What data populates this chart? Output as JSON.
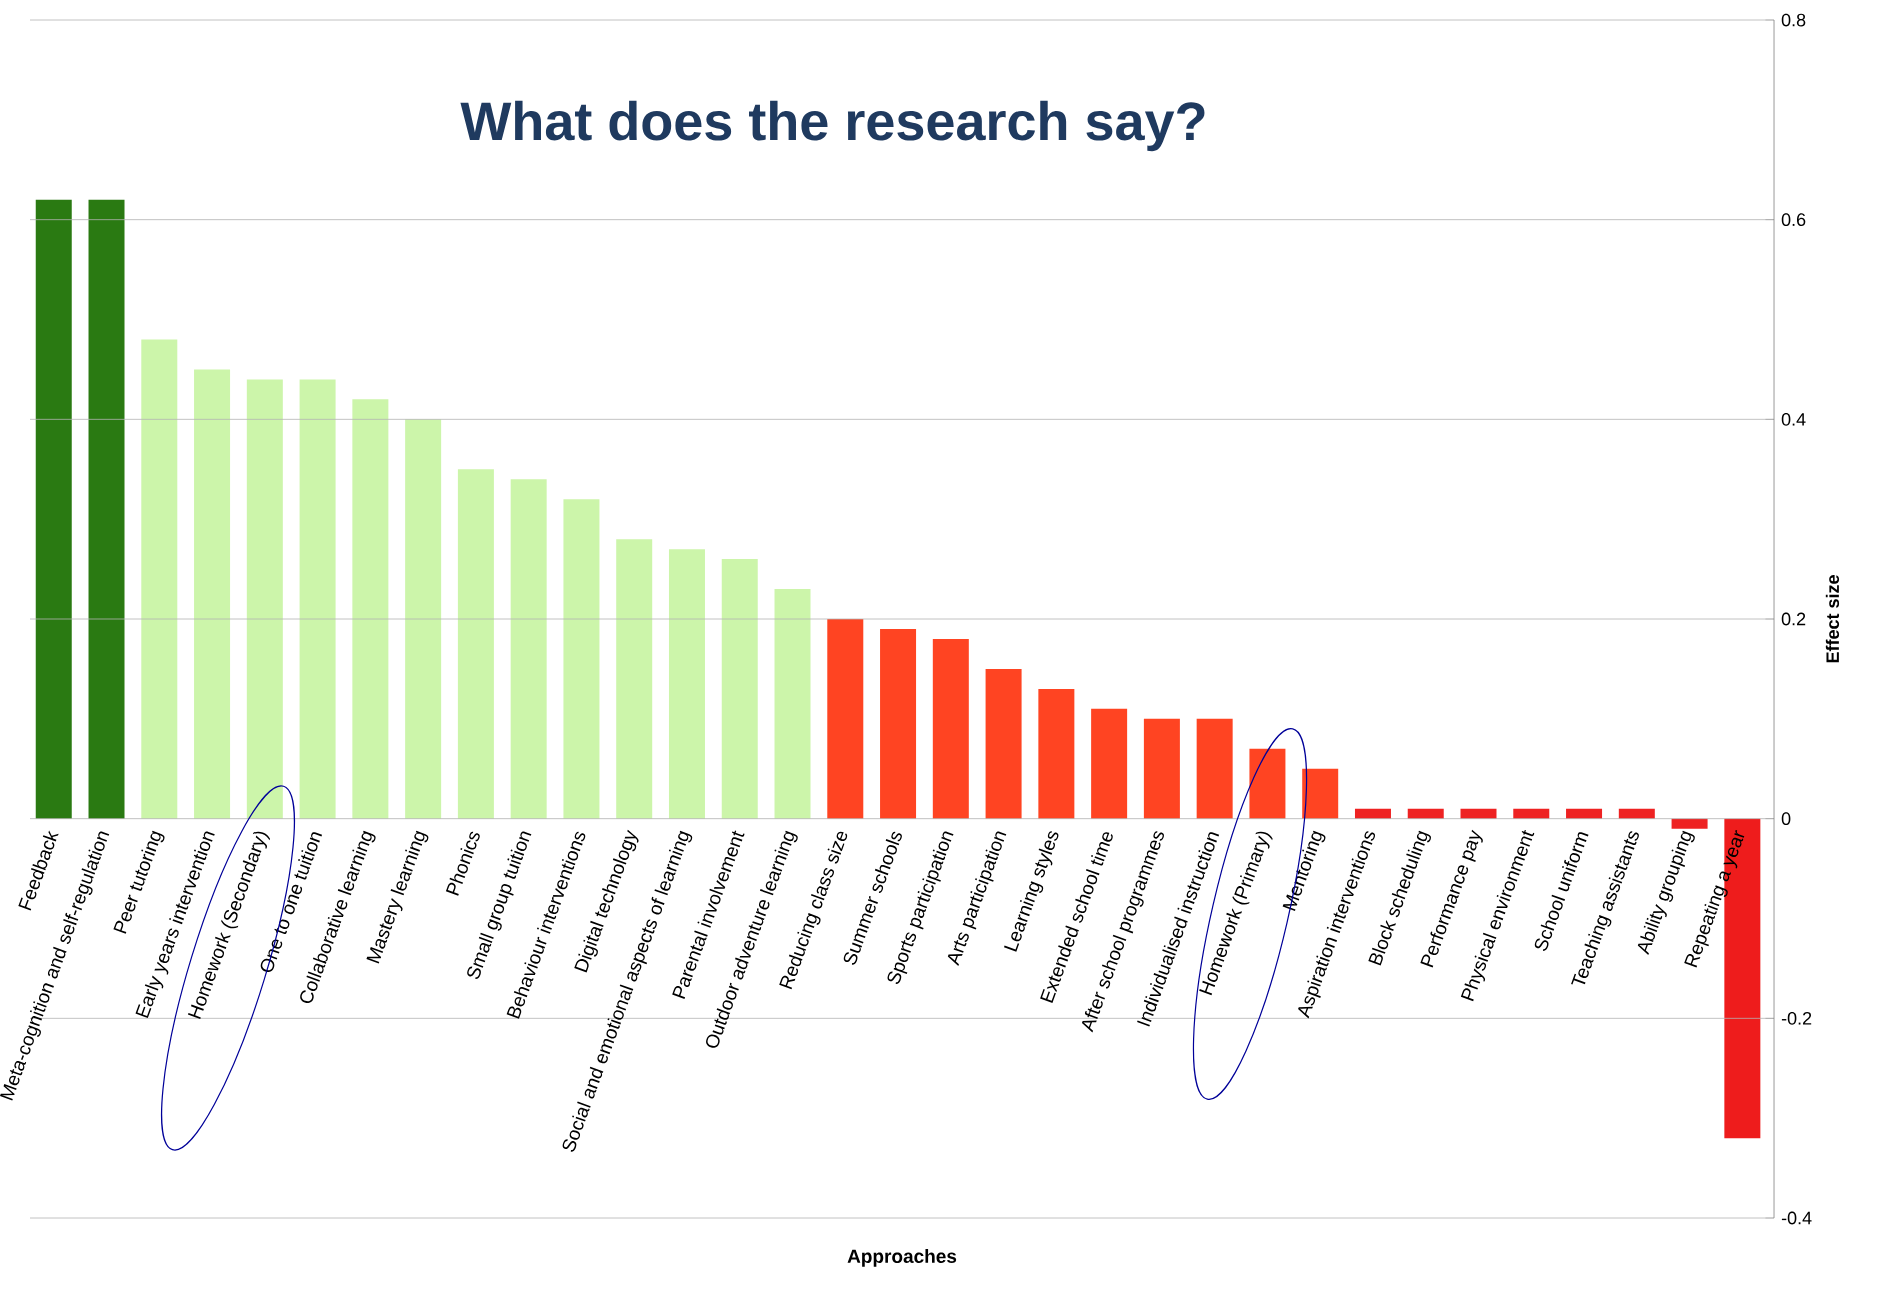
{
  "chart_data": {
    "type": "bar",
    "title": "What does the research say?",
    "xlabel": "Approaches",
    "ylabel": "Effect size",
    "categories": [
      "Feedback",
      "Meta-cognition and self-regulation",
      "Peer tutoring",
      "Early years intervention",
      "Homework (Secondary)",
      "One to one tuition",
      "Collaborative learning",
      "Mastery learning",
      "Phonics",
      "Small group tuition",
      "Behaviour interventions",
      "Digital technology",
      "Social and emotional aspects of learning",
      "Parental involvement",
      "Outdoor adventure learning",
      "Reducing class size",
      "Summer schools",
      "Sports participation",
      "Arts participation",
      "Learning styles",
      "Extended school time",
      "After school programmes",
      "Individualised instruction",
      "Homework (Primary)",
      "Mentoring",
      "Aspiration interventions",
      "Block scheduling",
      "Performance pay",
      "Physical environment",
      "School uniform",
      "Teaching assistants",
      "Ability grouping",
      "Repeating a year"
    ],
    "values": [
      0.62,
      0.62,
      0.48,
      0.45,
      0.44,
      0.44,
      0.42,
      0.4,
      0.35,
      0.34,
      0.32,
      0.28,
      0.27,
      0.26,
      0.23,
      0.2,
      0.19,
      0.18,
      0.15,
      0.13,
      0.11,
      0.1,
      0.1,
      0.07,
      0.05,
      0.01,
      0.01,
      0.01,
      0.01,
      0.01,
      0.01,
      -0.01,
      -0.32
    ],
    "colors": [
      "#2a7a12",
      "#2a7a12",
      "#ccf5aa",
      "#ccf5aa",
      "#ccf5aa",
      "#ccf5aa",
      "#ccf5aa",
      "#ccf5aa",
      "#ccf5aa",
      "#ccf5aa",
      "#ccf5aa",
      "#ccf5aa",
      "#ccf5aa",
      "#ccf5aa",
      "#ccf5aa",
      "#ff4422",
      "#ff4422",
      "#ff4422",
      "#ff4422",
      "#ff4422",
      "#ff4422",
      "#ff4422",
      "#ff4422",
      "#ff4422",
      "#ff4422",
      "#ee2222",
      "#ee2222",
      "#ee2222",
      "#ee2222",
      "#ee2222",
      "#ee2222",
      "#ee2222",
      "#ee1c1c"
    ],
    "ylim": [
      -0.4,
      0.8
    ],
    "yticks": [
      -0.4,
      -0.2,
      0,
      0.2,
      0.4,
      0.6,
      0.8
    ],
    "grid": "y"
  }
}
